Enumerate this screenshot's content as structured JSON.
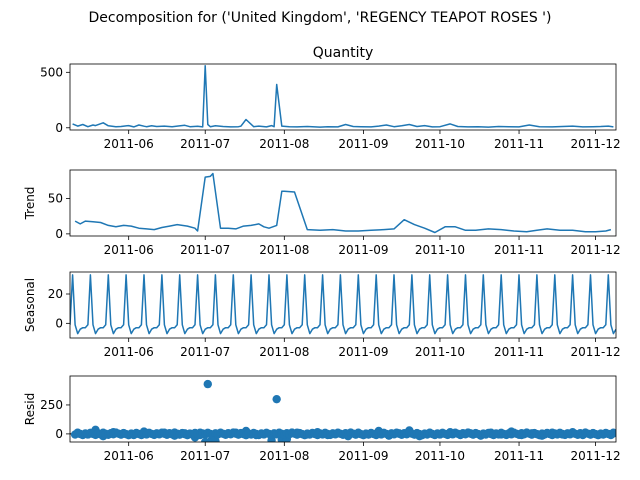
{
  "figure": {
    "suptitle": "Decomposition for ('United Kingdom', 'REGENCY TEAPOT ROSES ')"
  },
  "colors": {
    "series": "#1f77b4",
    "axis": "#000000",
    "zero_line": "#000000"
  },
  "chart_data": [
    {
      "type": "line",
      "title": "Quantity",
      "ylabel": "",
      "ylim": [
        -20,
        575
      ],
      "yticks": [
        0,
        500
      ],
      "xlim": [
        "2011-05-09",
        "2011-12-09"
      ],
      "xticks": [
        "2011-06",
        "2011-07",
        "2011-08",
        "2011-09",
        "2011-10",
        "2011-11",
        "2011-12"
      ],
      "x": [
        "2011-05-10",
        "2011-05-12",
        "2011-05-14",
        "2011-05-16",
        "2011-05-18",
        "2011-05-19",
        "2011-05-22",
        "2011-05-24",
        "2011-05-27",
        "2011-05-29",
        "2011-06-01",
        "2011-06-03",
        "2011-06-05",
        "2011-06-07",
        "2011-06-08",
        "2011-06-10",
        "2011-06-12",
        "2011-06-15",
        "2011-06-18",
        "2011-06-20",
        "2011-06-23",
        "2011-06-25",
        "2011-06-28",
        "2011-06-30",
        "2011-07-01",
        "2011-07-02",
        "2011-07-03",
        "2011-07-05",
        "2011-07-08",
        "2011-07-11",
        "2011-07-14",
        "2011-07-15",
        "2011-07-17",
        "2011-07-20",
        "2011-07-22",
        "2011-07-25",
        "2011-07-27",
        "2011-07-28",
        "2011-07-29",
        "2011-07-31",
        "2011-08-03",
        "2011-08-06",
        "2011-08-10",
        "2011-08-15",
        "2011-08-18",
        "2011-08-22",
        "2011-08-25",
        "2011-08-28",
        "2011-08-31",
        "2011-09-04",
        "2011-09-07",
        "2011-09-10",
        "2011-09-13",
        "2011-09-16",
        "2011-09-19",
        "2011-09-22",
        "2011-09-25",
        "2011-09-28",
        "2011-10-01",
        "2011-10-05",
        "2011-10-08",
        "2011-10-12",
        "2011-10-16",
        "2011-10-20",
        "2011-10-24",
        "2011-10-28",
        "2011-11-01",
        "2011-11-05",
        "2011-11-09",
        "2011-11-14",
        "2011-11-18",
        "2011-11-22",
        "2011-11-26",
        "2011-11-30",
        "2011-12-03",
        "2011-12-06",
        "2011-12-08"
      ],
      "values": [
        35,
        15,
        30,
        10,
        25,
        20,
        45,
        18,
        10,
        12,
        20,
        8,
        25,
        14,
        10,
        18,
        12,
        15,
        10,
        15,
        22,
        10,
        14,
        8,
        560,
        30,
        10,
        18,
        12,
        8,
        10,
        14,
        75,
        10,
        15,
        8,
        20,
        10,
        390,
        15,
        10,
        8,
        12,
        6,
        10,
        8,
        30,
        12,
        10,
        8,
        15,
        25,
        10,
        18,
        30,
        12,
        20,
        8,
        10,
        35,
        12,
        8,
        10,
        6,
        12,
        10,
        8,
        25,
        10,
        8,
        12,
        15,
        8,
        10,
        12,
        15,
        8
      ]
    },
    {
      "type": "line",
      "title": "",
      "ylabel": "Trend",
      "ylim": [
        -3,
        90
      ],
      "yticks": [
        0,
        50
      ],
      "xlim": [
        "2011-05-09",
        "2011-12-09"
      ],
      "xticks": [
        "2011-06",
        "2011-07",
        "2011-08",
        "2011-09",
        "2011-10",
        "2011-11",
        "2011-12"
      ],
      "x": [
        "2011-05-11",
        "2011-05-13",
        "2011-05-15",
        "2011-05-18",
        "2011-05-21",
        "2011-05-24",
        "2011-05-27",
        "2011-05-30",
        "2011-06-02",
        "2011-06-05",
        "2011-06-08",
        "2011-06-11",
        "2011-06-14",
        "2011-06-17",
        "2011-06-20",
        "2011-06-24",
        "2011-06-27",
        "2011-06-28",
        "2011-07-01",
        "2011-07-03",
        "2011-07-04",
        "2011-07-07",
        "2011-07-10",
        "2011-07-13",
        "2011-07-16",
        "2011-07-19",
        "2011-07-22",
        "2011-07-24",
        "2011-07-26",
        "2011-07-29",
        "2011-07-31",
        "2011-08-01",
        "2011-08-05",
        "2011-08-10",
        "2011-08-15",
        "2011-08-20",
        "2011-08-25",
        "2011-08-30",
        "2011-09-04",
        "2011-09-09",
        "2011-09-13",
        "2011-09-17",
        "2011-09-21",
        "2011-09-25",
        "2011-09-29",
        "2011-10-03",
        "2011-10-07",
        "2011-10-11",
        "2011-10-15",
        "2011-10-20",
        "2011-10-25",
        "2011-10-30",
        "2011-11-04",
        "2011-11-08",
        "2011-11-12",
        "2011-11-17",
        "2011-11-22",
        "2011-11-27",
        "2011-12-01",
        "2011-12-05",
        "2011-12-07"
      ],
      "values": [
        18,
        14,
        18,
        17,
        16,
        12,
        10,
        12,
        11,
        8,
        7,
        6,
        9,
        11,
        13,
        11,
        8,
        4,
        80,
        81,
        85,
        8,
        8,
        7,
        11,
        12,
        14,
        10,
        8,
        12,
        60,
        60,
        59,
        6,
        5,
        6,
        4,
        4,
        5,
        6,
        7,
        20,
        13,
        8,
        2,
        10,
        10,
        5,
        5,
        7,
        6,
        4,
        3,
        5,
        7,
        5,
        5,
        3,
        3,
        4,
        6
      ]
    },
    {
      "type": "line",
      "title": "",
      "ylabel": "Seasonal",
      "ylim": [
        -10,
        35
      ],
      "yticks": [
        0,
        20
      ],
      "xlim": [
        "2011-05-09",
        "2011-12-09"
      ],
      "xticks": [
        "2011-06",
        "2011-07",
        "2011-08",
        "2011-09",
        "2011-10",
        "2011-11",
        "2011-12"
      ],
      "period_days": 7,
      "first_peak": "2011-05-10",
      "pattern": [
        33,
        -1,
        -7,
        -4,
        -3,
        -3,
        -1
      ]
    },
    {
      "type": "scatter",
      "title": "",
      "ylabel": "Resid",
      "ylim": [
        -70,
        500
      ],
      "yticks": [
        0,
        250
      ],
      "xlim": [
        "2011-05-09",
        "2011-12-09"
      ],
      "xticks": [
        "2011-06",
        "2011-07",
        "2011-08",
        "2011-09",
        "2011-10",
        "2011-11",
        "2011-12"
      ],
      "x": [
        "2011-05-12",
        "2011-05-16",
        "2011-05-19",
        "2011-05-22",
        "2011-05-26",
        "2011-05-30",
        "2011-06-03",
        "2011-06-07",
        "2011-06-11",
        "2011-06-15",
        "2011-06-19",
        "2011-06-23",
        "2011-06-27",
        "2011-06-29",
        "2011-07-01",
        "2011-07-02",
        "2011-07-03",
        "2011-07-05",
        "2011-07-09",
        "2011-07-13",
        "2011-07-17",
        "2011-07-21",
        "2011-07-25",
        "2011-07-27",
        "2011-07-29",
        "2011-07-31",
        "2011-08-02",
        "2011-08-06",
        "2011-08-10",
        "2011-08-14",
        "2011-08-18",
        "2011-08-22",
        "2011-08-26",
        "2011-08-30",
        "2011-09-03",
        "2011-09-07",
        "2011-09-11",
        "2011-09-15",
        "2011-09-19",
        "2011-09-23",
        "2011-09-27",
        "2011-10-01",
        "2011-10-05",
        "2011-10-09",
        "2011-10-13",
        "2011-10-17",
        "2011-10-21",
        "2011-10-25",
        "2011-10-29",
        "2011-11-02",
        "2011-11-06",
        "2011-11-10",
        "2011-11-14",
        "2011-11-18",
        "2011-11-22",
        "2011-11-26",
        "2011-11-30",
        "2011-12-04",
        "2011-12-08"
      ],
      "values": [
        10,
        -5,
        35,
        -20,
        15,
        5,
        -10,
        20,
        -5,
        10,
        -15,
        5,
        -30,
        10,
        -70,
        430,
        -65,
        -60,
        -5,
        10,
        25,
        -10,
        5,
        -55,
        300,
        -50,
        -45,
        10,
        -5,
        15,
        -10,
        5,
        -20,
        10,
        -5,
        25,
        -15,
        5,
        30,
        -20,
        10,
        -5,
        15,
        -10,
        5,
        -15,
        10,
        -5,
        20,
        -10,
        5,
        -15,
        10,
        -5,
        15,
        -10,
        5,
        -5,
        10
      ]
    }
  ]
}
